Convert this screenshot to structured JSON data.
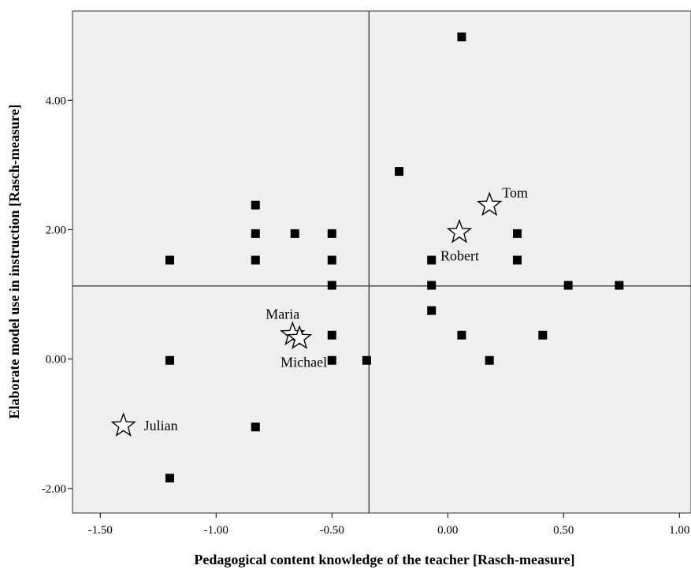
{
  "chart_data": {
    "type": "scatter",
    "title": "",
    "xlabel": "Pedagogical content knowledge of the teacher [Rasch-measure]",
    "ylabel": "Elaborate model use in instruction [Rasch-measure]",
    "xlim": [
      -1.62,
      1.05
    ],
    "ylim": [
      -2.38,
      5.38
    ],
    "x_ticks": [
      -1.5,
      -1.0,
      -0.5,
      0.0,
      0.5,
      1.0
    ],
    "x_tick_labels": [
      "-1.50",
      "-1.00",
      "-0.50",
      "0.00",
      "0.50",
      "1.00"
    ],
    "y_ticks": [
      -2.0,
      0.0,
      2.0,
      4.0
    ],
    "y_tick_labels": [
      "-2.00",
      "0.00",
      "2.00",
      "4.00"
    ],
    "reference_lines": {
      "x": -0.34,
      "y": 1.13
    },
    "grid": false,
    "background_color": "#efefef",
    "marker_color": "#000000",
    "series": [
      {
        "marker": "square",
        "points": [
          {
            "x": 0.06,
            "y": 4.98
          },
          {
            "x": -0.21,
            "y": 2.9
          },
          {
            "x": -0.83,
            "y": 2.38
          },
          {
            "x": -0.83,
            "y": 1.94
          },
          {
            "x": -0.66,
            "y": 1.94
          },
          {
            "x": -0.5,
            "y": 1.94
          },
          {
            "x": 0.3,
            "y": 1.94
          },
          {
            "x": -1.2,
            "y": 1.53
          },
          {
            "x": -0.83,
            "y": 1.53
          },
          {
            "x": -0.5,
            "y": 1.53
          },
          {
            "x": -0.07,
            "y": 1.53
          },
          {
            "x": 0.3,
            "y": 1.53
          },
          {
            "x": -0.5,
            "y": 1.14
          },
          {
            "x": -0.07,
            "y": 1.14
          },
          {
            "x": 0.52,
            "y": 1.14
          },
          {
            "x": 0.74,
            "y": 1.14
          },
          {
            "x": -0.07,
            "y": 0.75
          },
          {
            "x": -0.5,
            "y": 0.37
          },
          {
            "x": 0.06,
            "y": 0.37
          },
          {
            "x": 0.41,
            "y": 0.37
          },
          {
            "x": -1.2,
            "y": -0.02
          },
          {
            "x": -0.5,
            "y": -0.02
          },
          {
            "x": -0.35,
            "y": -0.02
          },
          {
            "x": 0.18,
            "y": -0.02
          },
          {
            "x": -0.83,
            "y": -1.05
          },
          {
            "x": -1.2,
            "y": -1.84
          }
        ]
      },
      {
        "marker": "star",
        "points": [
          {
            "x": 0.18,
            "y": 2.38,
            "label": "Tom",
            "label_pos": "top-right"
          },
          {
            "x": 0.05,
            "y": 1.96,
            "label": "Robert",
            "label_pos": "below"
          },
          {
            "x": -0.67,
            "y": 0.38,
            "label": "Maria",
            "label_pos": "above"
          },
          {
            "x": -0.64,
            "y": 0.32,
            "label": "Michael",
            "label_pos": "below"
          },
          {
            "x": -1.4,
            "y": -1.03,
            "label": "Julian",
            "label_pos": "right"
          }
        ]
      }
    ]
  }
}
